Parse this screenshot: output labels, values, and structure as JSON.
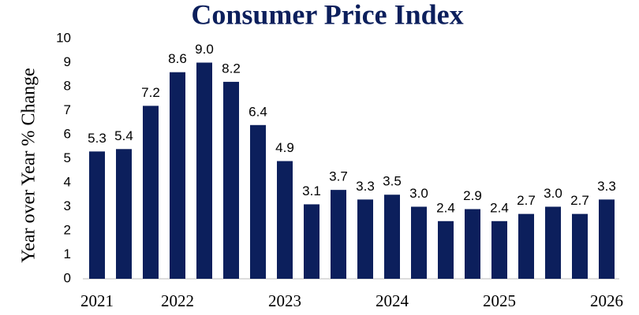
{
  "chart_data": {
    "type": "bar",
    "title": "Consumer Price Index",
    "y_label": "Year over Year % Change",
    "categories": [
      "2021",
      null,
      null,
      "2022",
      null,
      null,
      null,
      "2023",
      null,
      null,
      null,
      "2024",
      null,
      null,
      null,
      "2025",
      null,
      null,
      null,
      "2026"
    ],
    "values": [
      5.3,
      5.4,
      7.2,
      8.6,
      9.0,
      8.2,
      6.4,
      4.9,
      3.1,
      3.7,
      3.3,
      3.5,
      3.0,
      2.4,
      2.9,
      2.4,
      2.7,
      3.0,
      2.7,
      3.3
    ],
    "value_labels": [
      "5.3",
      "5.4",
      "7.2",
      "8.6",
      "9.0",
      "8.2",
      "6.4",
      "4.9",
      "3.1",
      "3.7",
      "3.3",
      "3.5",
      "3.0",
      "2.4",
      "2.9",
      "2.4",
      "2.7",
      "3.0",
      "2.7",
      "3.3"
    ],
    "color": "#0c1f5c",
    "ylim": [
      0,
      10
    ],
    "yticks": [
      0,
      1,
      2,
      3,
      4,
      5,
      6,
      7,
      8,
      9,
      10
    ],
    "grid": false
  }
}
